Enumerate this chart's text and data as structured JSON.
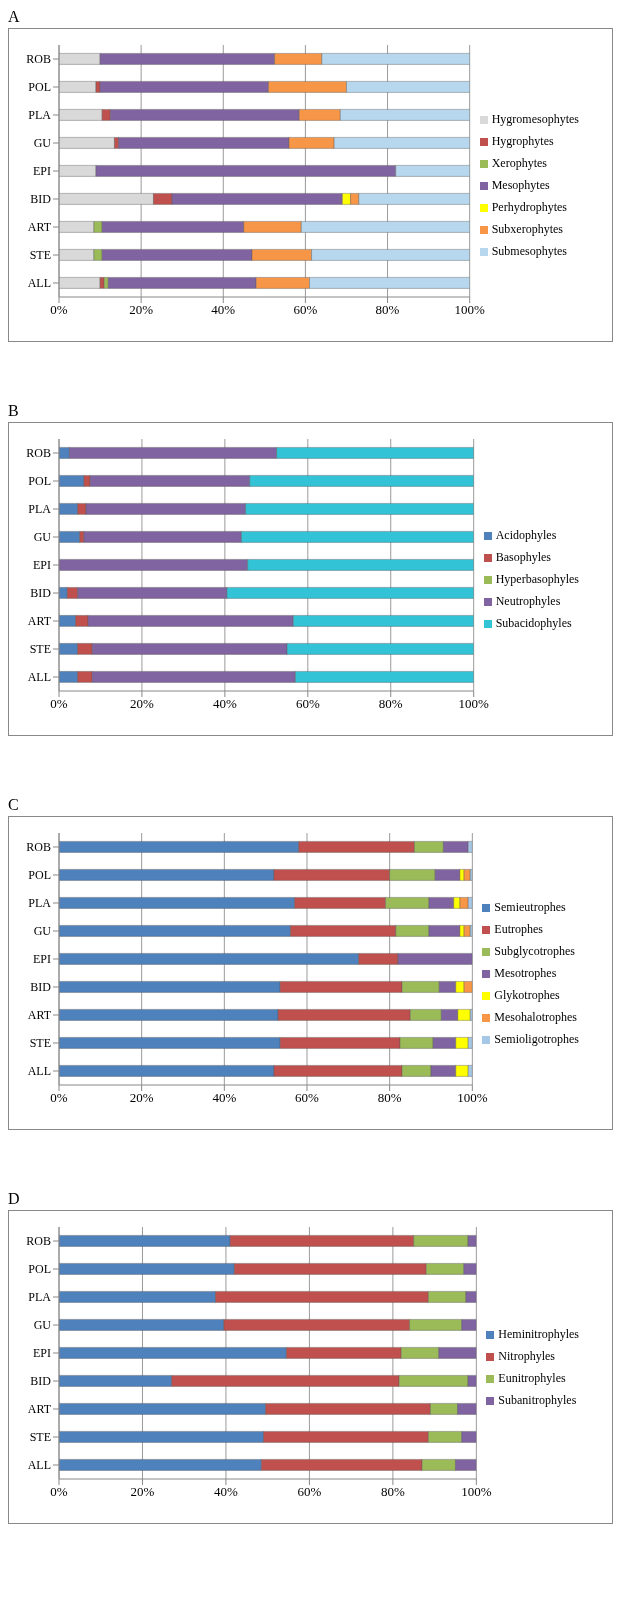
{
  "chart_data": [
    {
      "type": "bar",
      "title": "A",
      "orientation": "horizontal",
      "stacked": true,
      "categories": [
        "ROB",
        "POL",
        "PLA",
        "GU",
        "EPI",
        "BID",
        "ART",
        "STE",
        "ALL"
      ],
      "series": [
        {
          "name": "Hygromesophytes",
          "color": "#d9d9d9",
          "values": [
            10,
            9,
            10.5,
            13.5,
            9,
            23,
            8.5,
            8.5,
            10
          ]
        },
        {
          "name": "Hygrophytes",
          "color": "#c0504d",
          "values": [
            0,
            1,
            2,
            1,
            0,
            4.5,
            0,
            0,
            1
          ]
        },
        {
          "name": "Xerophytes",
          "color": "#9bbb59",
          "values": [
            0,
            0,
            0,
            0,
            0,
            0,
            2,
            2,
            1
          ]
        },
        {
          "name": "Mesophytes",
          "color": "#8064a2",
          "values": [
            42.5,
            41,
            46,
            41.5,
            73,
            41.5,
            34.5,
            36.5,
            36
          ]
        },
        {
          "name": "Perhydrophytes",
          "color": "#ffff00",
          "values": [
            0,
            0,
            0,
            0,
            0,
            2,
            0,
            0,
            0
          ]
        },
        {
          "name": "Subxerophytes",
          "color": "#f79646",
          "values": [
            11.5,
            19,
            10,
            11,
            0,
            2,
            14,
            14.5,
            13
          ]
        },
        {
          "name": "Submesophytes",
          "color": "#b7d7ee",
          "values": [
            36,
            30,
            31.5,
            33,
            18,
            27,
            41,
            38.5,
            39
          ]
        }
      ],
      "xlim": [
        0,
        100
      ],
      "xticks": [
        {
          "value": 0,
          "label": "0%"
        },
        {
          "value": 20,
          "label": "20%"
        },
        {
          "value": 40,
          "label": "40%"
        },
        {
          "value": 60,
          "label": "60%"
        },
        {
          "value": 80,
          "label": "80%"
        },
        {
          "value": 100,
          "label": "100%"
        }
      ],
      "grid": "x",
      "legend": "right"
    },
    {
      "type": "bar",
      "title": "B",
      "orientation": "horizontal",
      "stacked": true,
      "categories": [
        "ROB",
        "POL",
        "PLA",
        "GU",
        "EPI",
        "BID",
        "ART",
        "STE",
        "ALL"
      ],
      "series": [
        {
          "name": "Acidophyles",
          "color": "#4f81bd",
          "values": [
            2.5,
            6,
            4.5,
            5,
            0,
            2,
            4,
            4.5,
            4.5
          ]
        },
        {
          "name": "Basophyles",
          "color": "#c0504d",
          "values": [
            0,
            1.5,
            2,
            1,
            0,
            2.5,
            3,
            3.5,
            3.5
          ]
        },
        {
          "name": "Hyperbasophyles",
          "color": "#9bbb59",
          "values": [
            0,
            0,
            0,
            0,
            0,
            0,
            0,
            0,
            0
          ]
        },
        {
          "name": "Neutrophyles",
          "color": "#8064a2",
          "values": [
            50,
            38.5,
            38.5,
            38,
            45.5,
            36,
            49.5,
            47,
            49
          ]
        },
        {
          "name": "Subacidophyles",
          "color": "#33c3d6",
          "values": [
            47.5,
            54,
            55,
            56,
            54.5,
            59.5,
            43.5,
            45,
            43
          ]
        }
      ],
      "xlim": [
        0,
        100
      ],
      "xticks": [
        {
          "value": 0,
          "label": "0%"
        },
        {
          "value": 20,
          "label": "20%"
        },
        {
          "value": 40,
          "label": "40%"
        },
        {
          "value": 60,
          "label": "60%"
        },
        {
          "value": 80,
          "label": "80%"
        },
        {
          "value": 100,
          "label": "100%"
        }
      ],
      "grid": "x",
      "legend": "right"
    },
    {
      "type": "bar",
      "title": "C",
      "orientation": "horizontal",
      "stacked": true,
      "categories": [
        "ROB",
        "POL",
        "PLA",
        "GU",
        "EPI",
        "BID",
        "ART",
        "STE",
        "ALL"
      ],
      "series": [
        {
          "name": "Semieutrophes",
          "color": "#4f81bd",
          "values": [
            58,
            52,
            57,
            56,
            72.5,
            53.5,
            53,
            53.5,
            52
          ]
        },
        {
          "name": "Eutrophes",
          "color": "#c0504d",
          "values": [
            28,
            28,
            22,
            25.5,
            9.5,
            29.5,
            32,
            29,
            31
          ]
        },
        {
          "name": "Subglycotrophes",
          "color": "#9bbb59",
          "values": [
            7,
            11,
            10.5,
            8,
            0,
            9,
            7.5,
            8,
            7
          ]
        },
        {
          "name": "Mesotrophes",
          "color": "#8064a2",
          "values": [
            6,
            6,
            6,
            7.5,
            18,
            4,
            4,
            5.5,
            6
          ]
        },
        {
          "name": "Glykotrophes",
          "color": "#ffff00",
          "values": [
            0,
            1,
            1.5,
            1,
            0,
            2,
            3,
            3,
            3
          ]
        },
        {
          "name": "Mesohalotrophes",
          "color": "#f79646",
          "values": [
            0,
            1.5,
            2,
            1.5,
            0,
            2,
            0,
            0,
            0
          ]
        },
        {
          "name": "Semioligotrophes",
          "color": "#a6c8e6",
          "values": [
            1,
            0.5,
            1,
            0.5,
            0,
            0,
            0.5,
            1,
            1
          ]
        }
      ],
      "xlim": [
        0,
        100
      ],
      "xticks": [
        {
          "value": 0,
          "label": "0%"
        },
        {
          "value": 20,
          "label": "20%"
        },
        {
          "value": 40,
          "label": "40%"
        },
        {
          "value": 60,
          "label": "60%"
        },
        {
          "value": 80,
          "label": "80%"
        },
        {
          "value": 100,
          "label": "100%"
        }
      ],
      "grid": "x",
      "legend": "right"
    },
    {
      "type": "bar",
      "title": "D",
      "orientation": "horizontal",
      "stacked": true,
      "categories": [
        "ROB",
        "POL",
        "PLA",
        "GU",
        "EPI",
        "BID",
        "ART",
        "STE",
        "ALL"
      ],
      "series": [
        {
          "name": "Heminitrophyles",
          "color": "#4f81bd",
          "values": [
            41,
            42,
            37.5,
            39.5,
            54.5,
            27,
            49.5,
            49,
            48.5
          ]
        },
        {
          "name": "Nitrophyles",
          "color": "#c0504d",
          "values": [
            44,
            46,
            51,
            44.5,
            27.5,
            54.5,
            39.5,
            39.5,
            38.5
          ]
        },
        {
          "name": "Eunitrophyles",
          "color": "#9bbb59",
          "values": [
            13,
            9,
            9,
            12.5,
            9,
            16.5,
            6.5,
            8,
            8
          ]
        },
        {
          "name": "Subanitrophyles",
          "color": "#8064a2",
          "values": [
            2,
            3,
            2.5,
            3.5,
            9,
            2,
            4.5,
            3.5,
            5
          ]
        }
      ],
      "xlim": [
        0,
        100
      ],
      "xticks": [
        {
          "value": 0,
          "label": "0%"
        },
        {
          "value": 20,
          "label": "20%"
        },
        {
          "value": 40,
          "label": "40%"
        },
        {
          "value": 60,
          "label": "60%"
        },
        {
          "value": 80,
          "label": "80%"
        },
        {
          "value": 100,
          "label": "100%"
        }
      ],
      "grid": "x",
      "legend": "right"
    }
  ]
}
